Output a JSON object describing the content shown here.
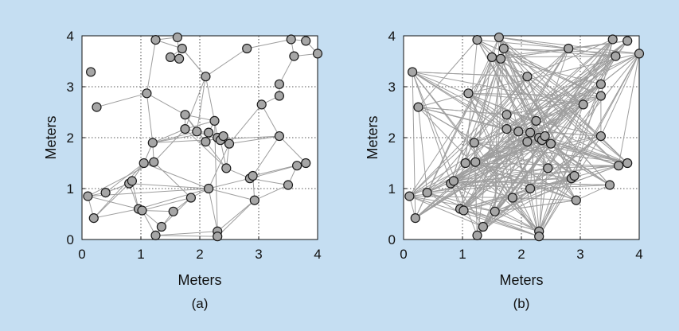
{
  "figure": {
    "background": "#c5def2"
  },
  "chart_data": [
    {
      "type": "scatter",
      "panel_label": "(a)",
      "xlabel": "Meters",
      "ylabel": "Meters",
      "xlim": [
        0,
        4
      ],
      "ylim": [
        0,
        4
      ],
      "xticks": [
        "0",
        "1",
        "2",
        "3",
        "4"
      ],
      "yticks": [
        "0",
        "1",
        "2",
        "3",
        "4"
      ],
      "grid": true,
      "marker_color": "#a6a6a6",
      "edge_color": "#9e9e9e",
      "nodes": [
        [
          0.15,
          3.29
        ],
        [
          0.25,
          2.6
        ],
        [
          0.1,
          0.85
        ],
        [
          0.2,
          0.42
        ],
        [
          0.4,
          0.92
        ],
        [
          0.8,
          1.1
        ],
        [
          0.85,
          1.15
        ],
        [
          0.96,
          0.6
        ],
        [
          1.02,
          0.57
        ],
        [
          1.05,
          1.5
        ],
        [
          1.1,
          2.87
        ],
        [
          1.22,
          1.52
        ],
        [
          1.2,
          1.9
        ],
        [
          1.25,
          0.08
        ],
        [
          1.25,
          3.92
        ],
        [
          1.35,
          0.25
        ],
        [
          1.5,
          3.58
        ],
        [
          1.55,
          0.55
        ],
        [
          1.62,
          3.97
        ],
        [
          1.65,
          3.55
        ],
        [
          1.7,
          3.75
        ],
        [
          1.75,
          2.17
        ],
        [
          1.75,
          2.45
        ],
        [
          1.85,
          0.82
        ],
        [
          1.95,
          2.12
        ],
        [
          2.1,
          3.2
        ],
        [
          2.1,
          1.92
        ],
        [
          2.15,
          2.1
        ],
        [
          2.15,
          1.0
        ],
        [
          2.25,
          2.33
        ],
        [
          2.3,
          0.16
        ],
        [
          2.3,
          0.06
        ],
        [
          2.3,
          2.0
        ],
        [
          2.35,
          1.95
        ],
        [
          2.4,
          2.03
        ],
        [
          2.45,
          1.4
        ],
        [
          2.5,
          1.88
        ],
        [
          2.8,
          3.75
        ],
        [
          2.85,
          1.2
        ],
        [
          2.9,
          1.25
        ],
        [
          2.93,
          0.77
        ],
        [
          3.05,
          2.65
        ],
        [
          3.35,
          3.05
        ],
        [
          3.35,
          2.82
        ],
        [
          3.35,
          2.03
        ],
        [
          3.5,
          1.07
        ],
        [
          3.55,
          3.93
        ],
        [
          3.6,
          3.6
        ],
        [
          3.65,
          1.45
        ],
        [
          3.8,
          1.5
        ],
        [
          3.8,
          3.9
        ],
        [
          4.0,
          3.65
        ]
      ],
      "edges": [
        [
          0,
          0
        ],
        [
          1,
          10
        ],
        [
          10,
          14
        ],
        [
          10,
          12
        ],
        [
          10,
          22
        ],
        [
          2,
          3
        ],
        [
          2,
          4
        ],
        [
          2,
          7
        ],
        [
          4,
          5
        ],
        [
          5,
          6
        ],
        [
          5,
          7
        ],
        [
          6,
          7
        ],
        [
          6,
          9
        ],
        [
          7,
          8
        ],
        [
          8,
          17
        ],
        [
          8,
          13
        ],
        [
          8,
          15
        ],
        [
          3,
          5
        ],
        [
          3,
          7
        ],
        [
          9,
          11
        ],
        [
          9,
          12
        ],
        [
          9,
          6
        ],
        [
          11,
          12
        ],
        [
          12,
          21
        ],
        [
          12,
          24
        ],
        [
          21,
          22
        ],
        [
          21,
          24
        ],
        [
          22,
          24
        ],
        [
          22,
          29
        ],
        [
          24,
          26
        ],
        [
          24,
          27
        ],
        [
          26,
          27
        ],
        [
          27,
          29
        ],
        [
          29,
          32
        ],
        [
          32,
          33
        ],
        [
          33,
          34
        ],
        [
          34,
          36
        ],
        [
          36,
          35
        ],
        [
          35,
          38
        ],
        [
          38,
          39
        ],
        [
          39,
          44
        ],
        [
          44,
          41
        ],
        [
          41,
          43
        ],
        [
          43,
          42
        ],
        [
          42,
          47
        ],
        [
          47,
          46
        ],
        [
          46,
          50
        ],
        [
          50,
          51
        ],
        [
          47,
          51
        ],
        [
          37,
          46
        ],
        [
          37,
          25
        ],
        [
          25,
          20
        ],
        [
          20,
          14
        ],
        [
          14,
          18
        ],
        [
          18,
          19
        ],
        [
          19,
          16
        ],
        [
          16,
          20
        ],
        [
          25,
          29
        ],
        [
          26,
          32
        ],
        [
          27,
          36
        ],
        [
          29,
          30
        ],
        [
          30,
          31
        ],
        [
          28,
          23
        ],
        [
          28,
          30
        ],
        [
          28,
          36
        ],
        [
          23,
          17
        ],
        [
          17,
          15
        ],
        [
          13,
          15
        ],
        [
          11,
          23
        ],
        [
          9,
          28
        ],
        [
          28,
          38
        ],
        [
          38,
          45
        ],
        [
          45,
          48
        ],
        [
          48,
          49
        ],
        [
          44,
          49
        ],
        [
          40,
          39
        ],
        [
          40,
          28
        ],
        [
          40,
          31
        ],
        [
          2,
          11
        ],
        [
          2,
          28
        ],
        [
          12,
          44
        ],
        [
          24,
          33
        ],
        [
          21,
          35
        ],
        [
          26,
          35
        ],
        [
          12,
          27
        ],
        [
          11,
          21
        ],
        [
          8,
          23
        ],
        [
          15,
          23
        ],
        [
          30,
          40
        ],
        [
          4,
          9
        ],
        [
          3,
          9
        ],
        [
          25,
          21
        ],
        [
          36,
          44
        ],
        [
          39,
          49
        ],
        [
          38,
          48
        ],
        [
          40,
          45
        ],
        [
          5,
          28
        ],
        [
          7,
          28
        ],
        [
          41,
          36
        ],
        [
          25,
          24
        ],
        [
          22,
          26
        ],
        [
          32,
          36
        ],
        [
          33,
          35
        ],
        [
          31,
          13
        ],
        [
          29,
          21
        ],
        [
          20,
          25
        ],
        [
          30,
          13
        ]
      ]
    },
    {
      "type": "scatter",
      "panel_label": "(b)",
      "xlabel": "Meters",
      "ylabel": "Meters",
      "xlim": [
        0,
        4
      ],
      "ylim": [
        0,
        4
      ],
      "xticks": [
        "0",
        "1",
        "2",
        "3",
        "4"
      ],
      "yticks": [
        "0",
        "1",
        "2",
        "3",
        "4"
      ],
      "grid": true,
      "marker_color": "#a6a6a6",
      "edge_color": "#9e9e9e",
      "nodes": [
        [
          0.15,
          3.29
        ],
        [
          0.25,
          2.6
        ],
        [
          0.1,
          0.85
        ],
        [
          0.2,
          0.42
        ],
        [
          0.4,
          0.92
        ],
        [
          0.8,
          1.1
        ],
        [
          0.85,
          1.15
        ],
        [
          0.96,
          0.6
        ],
        [
          1.02,
          0.57
        ],
        [
          1.05,
          1.5
        ],
        [
          1.1,
          2.87
        ],
        [
          1.22,
          1.52
        ],
        [
          1.2,
          1.9
        ],
        [
          1.25,
          0.08
        ],
        [
          1.25,
          3.92
        ],
        [
          1.35,
          0.25
        ],
        [
          1.5,
          3.58
        ],
        [
          1.55,
          0.55
        ],
        [
          1.62,
          3.97
        ],
        [
          1.65,
          3.55
        ],
        [
          1.7,
          3.75
        ],
        [
          1.75,
          2.17
        ],
        [
          1.75,
          2.45
        ],
        [
          1.85,
          0.82
        ],
        [
          1.95,
          2.12
        ],
        [
          2.1,
          3.2
        ],
        [
          2.1,
          1.92
        ],
        [
          2.15,
          2.1
        ],
        [
          2.15,
          1.0
        ],
        [
          2.25,
          2.33
        ],
        [
          2.3,
          0.16
        ],
        [
          2.3,
          0.06
        ],
        [
          2.3,
          2.0
        ],
        [
          2.35,
          1.95
        ],
        [
          2.4,
          2.03
        ],
        [
          2.45,
          1.4
        ],
        [
          2.5,
          1.88
        ],
        [
          2.8,
          3.75
        ],
        [
          2.85,
          1.2
        ],
        [
          2.9,
          1.25
        ],
        [
          2.93,
          0.77
        ],
        [
          3.05,
          2.65
        ],
        [
          3.35,
          3.05
        ],
        [
          3.35,
          2.82
        ],
        [
          3.35,
          2.03
        ],
        [
          3.5,
          1.07
        ],
        [
          3.55,
          3.93
        ],
        [
          3.6,
          3.6
        ],
        [
          3.65,
          1.45
        ],
        [
          3.8,
          1.5
        ],
        [
          3.8,
          3.9
        ],
        [
          4.0,
          3.65
        ]
      ],
      "edges_generated": "all pairs with index step 3, 5 or 7 (dense mesh)"
    }
  ]
}
